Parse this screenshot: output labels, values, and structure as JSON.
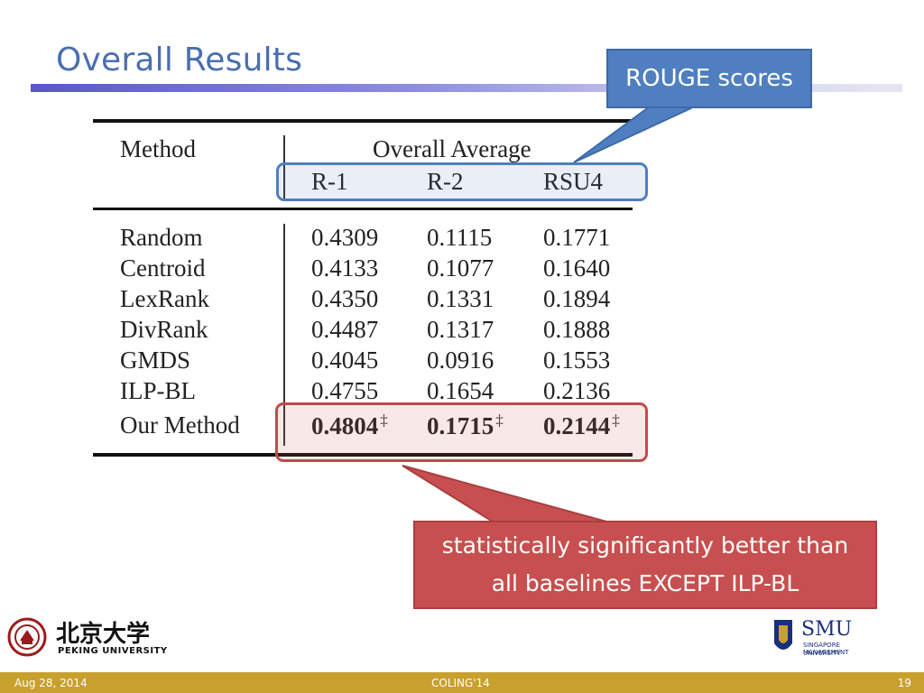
{
  "slide": {
    "title": "Overall Results",
    "footer": {
      "date": "Aug 28, 2014",
      "conference": "COLING'14",
      "page": "19"
    }
  },
  "table": {
    "header_method": "Method",
    "header_group": "Overall Average",
    "columns": [
      "R-1",
      "R-2",
      "RSU4"
    ],
    "rows": [
      {
        "method": "Random",
        "values": [
          "0.4309",
          "0.1115",
          "0.1771"
        ]
      },
      {
        "method": "Centroid",
        "values": [
          "0.4133",
          "0.1077",
          "0.1640"
        ]
      },
      {
        "method": "LexRank",
        "values": [
          "0.4350",
          "0.1331",
          "0.1894"
        ]
      },
      {
        "method": "DivRank",
        "values": [
          "0.4487",
          "0.1317",
          "0.1888"
        ]
      },
      {
        "method": "GMDS",
        "values": [
          "0.4045",
          "0.0916",
          "0.1553"
        ]
      },
      {
        "method": "ILP-BL",
        "values": [
          "0.4755",
          "0.1654",
          "0.2136"
        ]
      },
      {
        "method": "Our Method",
        "values": [
          "0.4804",
          "0.1715",
          "0.2144"
        ],
        "marker": "‡"
      }
    ]
  },
  "callouts": {
    "rouge": "ROUGE scores",
    "significance_line1": "statistically significantly better than",
    "significance_line2": "all baselines EXCEPT ILP-BL"
  },
  "logos": {
    "pku_text": "北京大学",
    "pku_english": "PEKING UNIVERSITY",
    "smu_text": "SMU",
    "smu_sub1": "SINGAPORE MANAGEMENT",
    "smu_sub2": "UNIVERSITY"
  },
  "colors": {
    "title": "#4a6fb0",
    "callout_blue": "#4f7fc0",
    "callout_red": "#c84f4f",
    "footer": "#c8a02c"
  }
}
